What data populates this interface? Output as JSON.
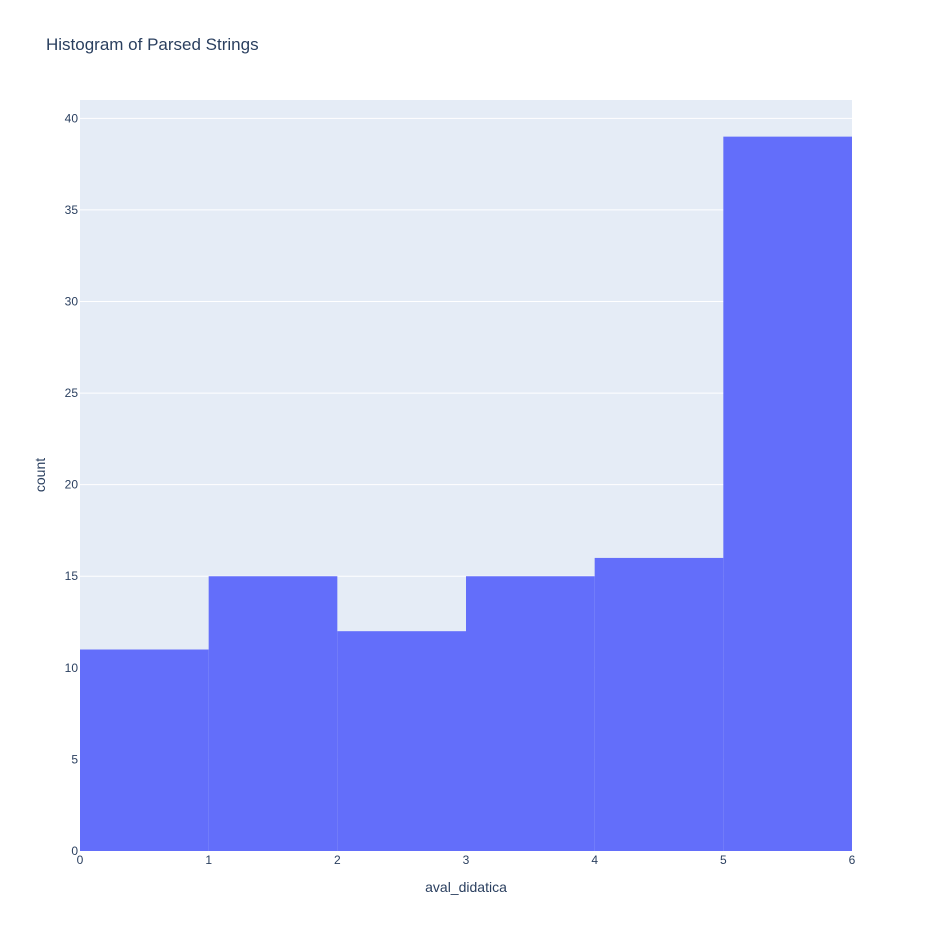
{
  "chart_data": {
    "type": "bar",
    "title": "Histogram of Parsed Strings",
    "xlabel": "aval_didatica",
    "ylabel": "count",
    "bins": [
      {
        "start": 0,
        "end": 1,
        "count": 11
      },
      {
        "start": 1,
        "end": 2,
        "count": 15
      },
      {
        "start": 2,
        "end": 3,
        "count": 12
      },
      {
        "start": 3,
        "end": 4,
        "count": 15
      },
      {
        "start": 4,
        "end": 5,
        "count": 16
      },
      {
        "start": 5,
        "end": 6,
        "count": 39
      }
    ],
    "xlim": [
      0,
      6
    ],
    "ylim": [
      0,
      41
    ],
    "xticks": [
      "0",
      "1",
      "2",
      "3",
      "4",
      "5",
      "6"
    ],
    "yticks": [
      "0",
      "5",
      "10",
      "15",
      "20",
      "25",
      "30",
      "35",
      "40"
    ],
    "grid": true,
    "bar_color": "#636efa",
    "plot_background": "#e5ecf6",
    "text_color": "#2a3f5f"
  }
}
